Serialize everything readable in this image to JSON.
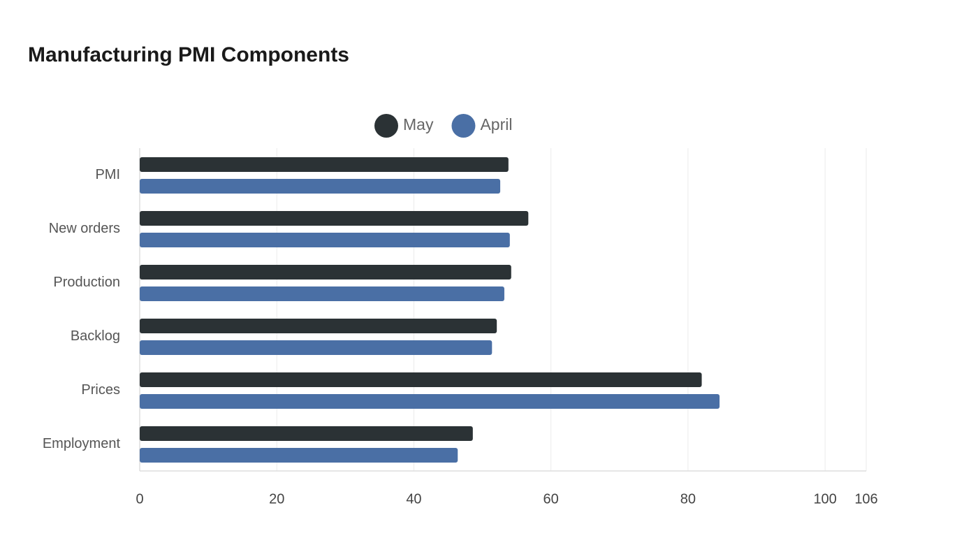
{
  "chart_data": {
    "type": "bar",
    "orientation": "horizontal",
    "title": "Manufacturing PMI Components",
    "categories": [
      "PMI",
      "New orders",
      "Production",
      "Backlog",
      "Prices",
      "Employment"
    ],
    "series": [
      {
        "name": "May",
        "color": "#2b3235",
        "values": [
          53.8,
          56.7,
          54.2,
          52.1,
          82.0,
          48.6
        ]
      },
      {
        "name": "April",
        "color": "#4a6fa5",
        "values": [
          52.6,
          54.0,
          53.2,
          51.4,
          84.6,
          46.4
        ]
      }
    ],
    "xlim": [
      0,
      106
    ],
    "xticks": [
      0,
      20,
      40,
      60,
      80,
      100,
      106
    ],
    "grid": true,
    "legend": "top"
  }
}
